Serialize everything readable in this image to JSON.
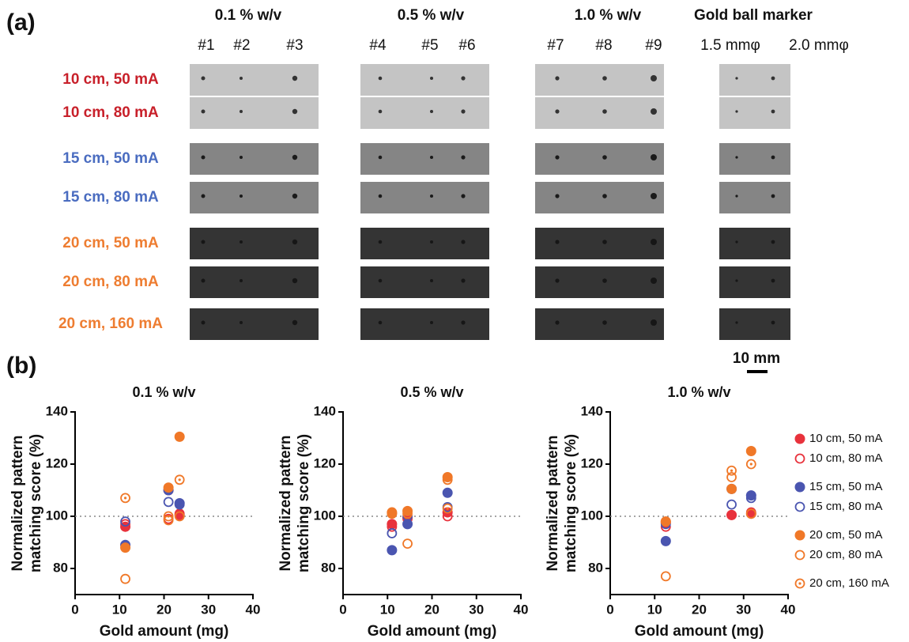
{
  "panel_a": {
    "label": "(a)",
    "columns": [
      {
        "title": "0.1 % w/v",
        "samples": [
          "#1",
          "#2",
          "#3"
        ]
      },
      {
        "title": "0.5 % w/v",
        "samples": [
          "#4",
          "#5",
          "#6"
        ]
      },
      {
        "title": "1.0 % w/v",
        "samples": [
          "#7",
          "#8",
          "#9"
        ]
      },
      {
        "title": "Gold ball marker",
        "samples": [
          "1.5 mmφ",
          "2.0 mmφ"
        ]
      }
    ],
    "rows": [
      {
        "label": "10 cm, 50 mA",
        "color": "#c8202a"
      },
      {
        "label": "10 cm, 80 mA",
        "color": "#c8202a"
      },
      {
        "label": "15 cm, 50 mA",
        "color": "#4a6cc0"
      },
      {
        "label": "15 cm, 80 mA",
        "color": "#4a6cc0"
      },
      {
        "label": "20 cm, 50 mA",
        "color": "#ee7d31"
      },
      {
        "label": "20 cm, 80 mA",
        "color": "#ee7d31"
      },
      {
        "label": "20 cm, 160 mA",
        "color": "#ee7d31"
      }
    ],
    "scale_bar": "10 mm"
  },
  "panel_b_label": "(b)",
  "chart_data": [
    {
      "type": "scatter",
      "title": "0.1 % w/v",
      "xlabel": "Gold amount (mg)",
      "ylabel": [
        "Normalized pattern",
        "matching score (%)"
      ],
      "x": [
        11.3,
        21,
        23.5
      ],
      "xlim": [
        0,
        40
      ],
      "xticks": [
        0,
        10,
        20,
        30,
        40
      ],
      "ylim": [
        70,
        140
      ],
      "yticks": [
        80,
        100,
        120,
        140
      ],
      "reference_line": 100,
      "grid": false,
      "series": [
        {
          "color": "#e8323c",
          "marker": "filled",
          "values": [
            96,
            110,
            100.5
          ]
        },
        {
          "color": "#e8323c",
          "marker": "open",
          "values": [
            97,
            99,
            101
          ]
        },
        {
          "color": "#4a55b0",
          "marker": "filled",
          "values": [
            89,
            110,
            105
          ]
        },
        {
          "color": "#4a55b0",
          "marker": "open",
          "values": [
            98,
            105.5,
            104.5
          ]
        },
        {
          "color": "#f07828",
          "marker": "filled",
          "values": [
            88,
            111,
            130.5
          ]
        },
        {
          "color": "#f07828",
          "marker": "open",
          "values": [
            76,
            98.5,
            100
          ]
        },
        {
          "color": "#f07828",
          "marker": "dotted",
          "values": [
            107,
            100,
            114
          ]
        }
      ]
    },
    {
      "type": "scatter",
      "title": "0.5 % w/v",
      "xlabel": "Gold amount (mg)",
      "ylabel": [
        "Normalized pattern",
        "matching score (%)"
      ],
      "x": [
        11,
        14.5,
        23.5
      ],
      "xlim": [
        0,
        40
      ],
      "xticks": [
        0,
        10,
        20,
        30,
        40
      ],
      "ylim": [
        70,
        140
      ],
      "yticks": [
        80,
        100,
        120,
        140
      ],
      "reference_line": 100,
      "grid": false,
      "series": [
        {
          "color": "#e8323c",
          "marker": "filled",
          "values": [
            97,
            99.5,
            101.5
          ]
        },
        {
          "color": "#e8323c",
          "marker": "open",
          "values": [
            96,
            99,
            100
          ]
        },
        {
          "color": "#4a55b0",
          "marker": "filled",
          "values": [
            87,
            97,
            109
          ]
        },
        {
          "color": "#4a55b0",
          "marker": "open",
          "values": [
            93.5,
            100,
            103.5
          ]
        },
        {
          "color": "#f07828",
          "marker": "filled",
          "values": [
            101.5,
            102,
            115
          ]
        },
        {
          "color": "#f07828",
          "marker": "open",
          "values": [
            101,
            89.5,
            114
          ]
        },
        {
          "color": "#f07828",
          "marker": "dotted",
          "values": [
            101,
            101,
            103
          ]
        }
      ]
    },
    {
      "type": "scatter",
      "title": "1.0 % w/v",
      "xlabel": "Gold amount (mg)",
      "ylabel": [
        "Normalized pattern",
        "matching score (%)"
      ],
      "x": [
        12.5,
        27.3,
        31.7
      ],
      "xlim": [
        0,
        40
      ],
      "xticks": [
        0,
        10,
        20,
        30,
        40
      ],
      "ylim": [
        70,
        140
      ],
      "yticks": [
        80,
        100,
        120,
        140
      ],
      "reference_line": 100,
      "grid": false,
      "legend": "right",
      "series": [
        {
          "name": "10 cm, 50 mA",
          "color": "#e8323c",
          "marker": "filled",
          "values": [
            97.5,
            100.5,
            101
          ]
        },
        {
          "name": "10 cm, 80 mA",
          "color": "#e8323c",
          "marker": "open",
          "values": [
            96,
            100.5,
            101.5
          ]
        },
        {
          "name": "15 cm, 50 mA",
          "color": "#4a55b0",
          "marker": "filled",
          "values": [
            90.5,
            110.5,
            108
          ]
        },
        {
          "name": "15 cm, 80 mA",
          "color": "#4a55b0",
          "marker": "open",
          "values": [
            97,
            104.5,
            107
          ]
        },
        {
          "name": "20 cm, 50 mA",
          "color": "#f07828",
          "marker": "filled",
          "values": [
            98,
            110.5,
            125
          ]
        },
        {
          "name": "20 cm, 80 mA",
          "color": "#f07828",
          "marker": "open",
          "values": [
            77,
            115,
            101
          ]
        },
        {
          "name": "20 cm, 160 mA",
          "color": "#f07828",
          "marker": "dotted",
          "values": [
            98,
            117.5,
            120
          ]
        }
      ]
    }
  ]
}
